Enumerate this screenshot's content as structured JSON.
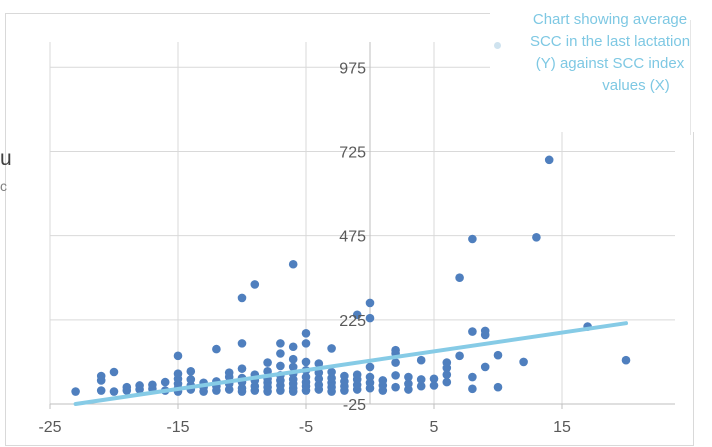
{
  "page": {
    "left_clip_text": "u",
    "left_clip_text2": "c"
  },
  "chart_data": {
    "type": "scatter",
    "title": "",
    "legend": {
      "position": "top-right",
      "lines": [
        "Chart showing average",
        "SCC in the last lactation",
        "(Y) against SCC index",
        "values (X)"
      ]
    },
    "xlabel": "",
    "ylabel": "",
    "xlim": [
      -25,
      25
    ],
    "ylim": [
      -25,
      1050
    ],
    "x_ticks": [
      -25,
      -15,
      -5,
      5,
      15
    ],
    "y_ticks": [
      -25,
      225,
      475,
      725,
      975
    ],
    "grid": true,
    "colors": {
      "points": "#4f7fbe",
      "trendline": "#86cbe6",
      "grid": "#d9d9d9"
    },
    "trendline": {
      "x": [
        -23,
        20
      ],
      "y": [
        -25,
        215
      ]
    },
    "points": [
      [
        -23,
        12
      ],
      [
        -21,
        15
      ],
      [
        -21,
        45
      ],
      [
        -21,
        58
      ],
      [
        -20,
        12
      ],
      [
        -20,
        70
      ],
      [
        -19,
        15
      ],
      [
        -19,
        25
      ],
      [
        -18,
        18
      ],
      [
        -18,
        30
      ],
      [
        -17,
        20
      ],
      [
        -17,
        32
      ],
      [
        -16,
        15
      ],
      [
        -16,
        40
      ],
      [
        -15,
        12
      ],
      [
        -15,
        22
      ],
      [
        -15,
        35
      ],
      [
        -15,
        50
      ],
      [
        -15,
        65
      ],
      [
        -15,
        118
      ],
      [
        -14,
        18
      ],
      [
        -14,
        30
      ],
      [
        -14,
        48
      ],
      [
        -14,
        72
      ],
      [
        -13,
        12
      ],
      [
        -13,
        25
      ],
      [
        -13,
        38
      ],
      [
        -12,
        15
      ],
      [
        -12,
        28
      ],
      [
        -12,
        42
      ],
      [
        -12,
        138
      ],
      [
        -11,
        18
      ],
      [
        -11,
        35
      ],
      [
        -11,
        55
      ],
      [
        -11,
        68
      ],
      [
        -10,
        12
      ],
      [
        -10,
        22
      ],
      [
        -10,
        40
      ],
      [
        -10,
        52
      ],
      [
        -10,
        80
      ],
      [
        -10,
        155
      ],
      [
        -10,
        290
      ],
      [
        -9,
        15
      ],
      [
        -9,
        28
      ],
      [
        -9,
        45
      ],
      [
        -9,
        62
      ],
      [
        -9,
        330
      ],
      [
        -8,
        12
      ],
      [
        -8,
        25
      ],
      [
        -8,
        38
      ],
      [
        -8,
        50
      ],
      [
        -8,
        72
      ],
      [
        -8,
        98
      ],
      [
        -7,
        15
      ],
      [
        -7,
        30
      ],
      [
        -7,
        45
      ],
      [
        -7,
        60
      ],
      [
        -7,
        88
      ],
      [
        -7,
        125
      ],
      [
        -7,
        155
      ],
      [
        -6,
        12
      ],
      [
        -6,
        22
      ],
      [
        -6,
        35
      ],
      [
        -6,
        48
      ],
      [
        -6,
        65
      ],
      [
        -6,
        85
      ],
      [
        -6,
        108
      ],
      [
        -6,
        145
      ],
      [
        -6,
        390
      ],
      [
        -5,
        15
      ],
      [
        -5,
        28
      ],
      [
        -5,
        40
      ],
      [
        -5,
        55
      ],
      [
        -5,
        75
      ],
      [
        -5,
        100
      ],
      [
        -5,
        155
      ],
      [
        -5,
        185
      ],
      [
        -4,
        18
      ],
      [
        -4,
        32
      ],
      [
        -4,
        50
      ],
      [
        -4,
        68
      ],
      [
        -4,
        95
      ],
      [
        -3,
        12
      ],
      [
        -3,
        25
      ],
      [
        -3,
        38
      ],
      [
        -3,
        52
      ],
      [
        -3,
        70
      ],
      [
        -3,
        140
      ],
      [
        -2,
        15
      ],
      [
        -2,
        28
      ],
      [
        -2,
        42
      ],
      [
        -2,
        58
      ],
      [
        -1,
        18
      ],
      [
        -1,
        32
      ],
      [
        -1,
        48
      ],
      [
        -1,
        62
      ],
      [
        -1,
        240
      ],
      [
        0,
        22
      ],
      [
        0,
        38
      ],
      [
        0,
        55
      ],
      [
        0,
        85
      ],
      [
        0,
        230
      ],
      [
        0,
        275
      ],
      [
        1,
        15
      ],
      [
        1,
        30
      ],
      [
        1,
        45
      ],
      [
        2,
        25
      ],
      [
        2,
        60
      ],
      [
        2,
        98
      ],
      [
        2,
        125
      ],
      [
        2,
        135
      ],
      [
        3,
        18
      ],
      [
        3,
        35
      ],
      [
        3,
        55
      ],
      [
        4,
        28
      ],
      [
        4,
        48
      ],
      [
        4,
        105
      ],
      [
        5,
        30
      ],
      [
        5,
        50
      ],
      [
        6,
        40
      ],
      [
        6,
        62
      ],
      [
        6,
        82
      ],
      [
        6,
        98
      ],
      [
        7,
        118
      ],
      [
        7,
        350
      ],
      [
        8,
        20
      ],
      [
        8,
        55
      ],
      [
        8,
        190
      ],
      [
        8,
        465
      ],
      [
        9,
        85
      ],
      [
        9,
        180
      ],
      [
        9,
        192
      ],
      [
        10,
        25
      ],
      [
        10,
        120
      ],
      [
        12,
        100
      ],
      [
        13,
        470
      ],
      [
        14,
        700
      ],
      [
        17,
        205
      ],
      [
        20,
        105
      ]
    ]
  }
}
